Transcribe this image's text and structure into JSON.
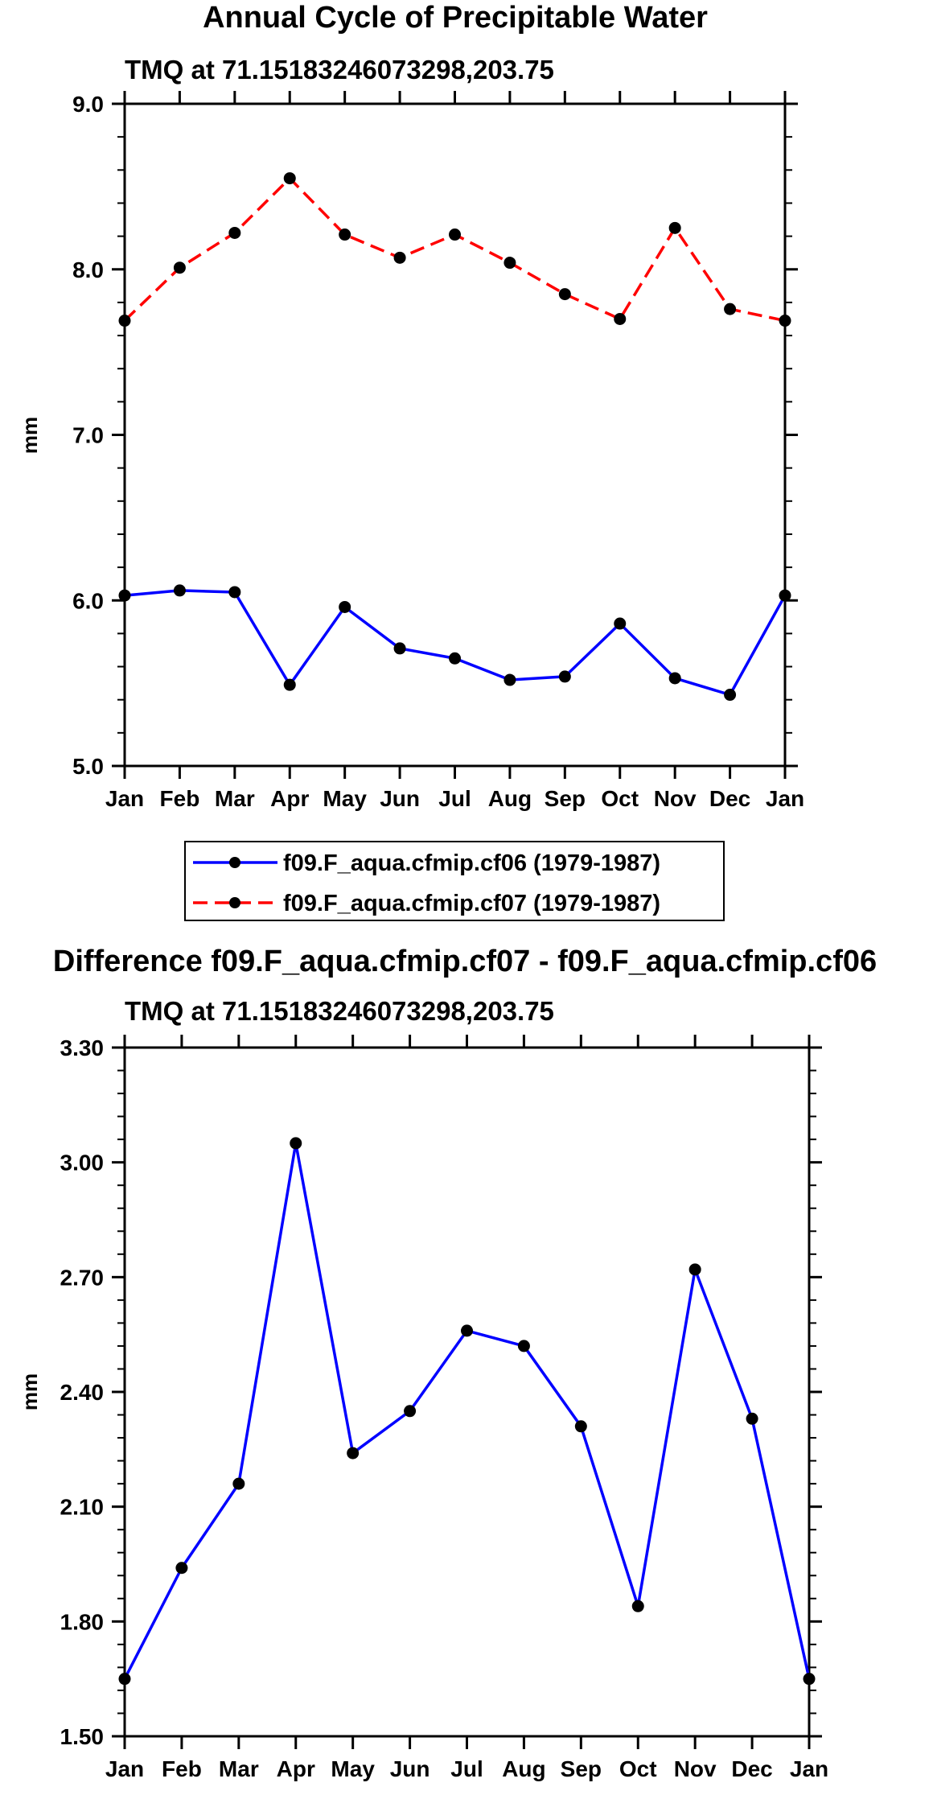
{
  "chart_data": [
    {
      "type": "line",
      "title": "Annual Cycle of Precipitable Water",
      "subtitle": "TMQ at 71.15183246073298,203.75",
      "xlabel": "",
      "ylabel": "mm",
      "categories": [
        "Jan",
        "Feb",
        "Mar",
        "Apr",
        "May",
        "Jun",
        "Jul",
        "Aug",
        "Sep",
        "Oct",
        "Nov",
        "Dec",
        "Jan"
      ],
      "ylim": [
        5.0,
        9.0
      ],
      "yticks": [
        5.0,
        6.0,
        7.0,
        8.0,
        9.0
      ],
      "ytick_labels": [
        "5.0",
        "6.0",
        "7.0",
        "8.0",
        "9.0"
      ],
      "legend_position": "bottom",
      "series": [
        {
          "name": "f09.F_aqua.cfmip.cf06 (1979-1987)",
          "color": "#0000ff",
          "dash": "solid",
          "values": [
            6.03,
            6.06,
            6.05,
            5.49,
            5.96,
            5.71,
            5.65,
            5.52,
            5.54,
            5.86,
            5.53,
            5.43,
            6.03
          ]
        },
        {
          "name": "f09.F_aqua.cfmip.cf07 (1979-1987)",
          "color": "#ff0000",
          "dash": "dashed",
          "values": [
            7.69,
            8.01,
            8.22,
            8.55,
            8.21,
            8.07,
            8.21,
            8.04,
            7.85,
            7.7,
            8.25,
            7.76,
            7.69
          ]
        }
      ]
    },
    {
      "type": "line",
      "title": "Difference f09.F_aqua.cfmip.cf07 - f09.F_aqua.cfmip.cf06",
      "subtitle": "TMQ at 71.15183246073298,203.75",
      "xlabel": "",
      "ylabel": "mm",
      "categories": [
        "Jan",
        "Feb",
        "Mar",
        "Apr",
        "May",
        "Jun",
        "Jul",
        "Aug",
        "Sep",
        "Oct",
        "Nov",
        "Dec",
        "Jan"
      ],
      "ylim": [
        1.5,
        3.3
      ],
      "yticks": [
        1.5,
        1.8,
        2.1,
        2.4,
        2.7,
        3.0,
        3.3
      ],
      "ytick_labels": [
        "1.50",
        "1.80",
        "2.10",
        "2.40",
        "2.70",
        "3.00",
        "3.30"
      ],
      "series": [
        {
          "name": "difference",
          "color": "#0000ff",
          "dash": "solid",
          "values": [
            1.65,
            1.94,
            2.16,
            3.05,
            2.24,
            2.35,
            2.56,
            2.52,
            2.31,
            1.84,
            2.72,
            2.33,
            1.65
          ]
        }
      ]
    }
  ]
}
